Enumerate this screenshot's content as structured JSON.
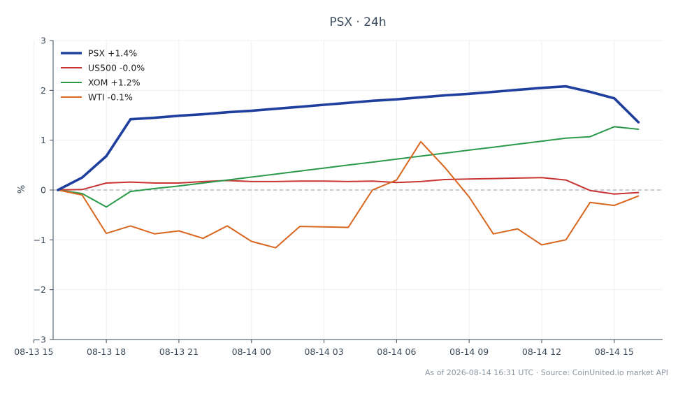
{
  "chart_data": {
    "type": "line",
    "title": "PSX · 24h",
    "xlabel": "",
    "ylabel": "%",
    "ylim": [
      -3,
      3
    ],
    "xlim": [
      "2026-08-13 15:48",
      "2026-08-14 17:00"
    ],
    "y_ticks": [
      3,
      2,
      1,
      0,
      -1,
      -2,
      -3
    ],
    "y_tick_labels": [
      "3",
      "2",
      "1",
      "0",
      "−1",
      "−2",
      "−3"
    ],
    "x_ticks": [
      "2026-08-13 15:00",
      "2026-08-13 18:00",
      "2026-08-13 21:00",
      "2026-08-14 00:00",
      "2026-08-14 03:00",
      "2026-08-14 06:00",
      "2026-08-14 09:00",
      "2026-08-14 12:00",
      "2026-08-14 15:00"
    ],
    "x_tick_labels": [
      "08-13 15",
      "08-13 18",
      "08-13 21",
      "08-14 00",
      "08-14 03",
      "08-14 06",
      "08-14 09",
      "08-14 12",
      "08-14 15"
    ],
    "grid": true,
    "legend_position": "top-left",
    "zero_line": true,
    "x": [
      "2026-08-13 16:00",
      "2026-08-13 17:00",
      "2026-08-13 18:00",
      "2026-08-13 19:00",
      "2026-08-13 20:00",
      "2026-08-13 21:00",
      "2026-08-13 22:00",
      "2026-08-13 23:00",
      "2026-08-14 00:00",
      "2026-08-14 01:00",
      "2026-08-14 02:00",
      "2026-08-14 03:00",
      "2026-08-14 04:00",
      "2026-08-14 05:00",
      "2026-08-14 06:00",
      "2026-08-14 07:00",
      "2026-08-14 08:00",
      "2026-08-14 09:00",
      "2026-08-14 10:00",
      "2026-08-14 11:00",
      "2026-08-14 12:00",
      "2026-08-14 13:00",
      "2026-08-14 14:00",
      "2026-08-14 15:00",
      "2026-08-14 16:00"
    ],
    "series": [
      {
        "name": "PSX +1.4%",
        "color": "#1f3f9e",
        "emphasis": true,
        "values": [
          0.0,
          0.25,
          0.68,
          1.42,
          1.45,
          1.49,
          1.52,
          1.56,
          1.59,
          1.63,
          1.67,
          1.71,
          1.75,
          1.79,
          1.82,
          1.86,
          1.9,
          1.93,
          1.97,
          2.01,
          2.05,
          2.08,
          1.97,
          1.84,
          1.36
        ]
      },
      {
        "name": "US500 -0.0%",
        "color": "#c83434",
        "emphasis": false,
        "values": [
          0.0,
          0.01,
          0.14,
          0.16,
          0.14,
          0.14,
          0.17,
          0.19,
          0.17,
          0.17,
          0.18,
          0.18,
          0.17,
          0.18,
          0.15,
          0.17,
          0.21,
          0.22,
          0.23,
          0.24,
          0.25,
          0.2,
          -0.01,
          -0.08,
          -0.05
        ]
      },
      {
        "name": "XOM +1.2%",
        "color": "#2a9a4a",
        "emphasis": false,
        "values": [
          0.0,
          -0.07,
          -0.34,
          -0.03,
          0.03,
          0.08,
          0.14,
          0.2,
          0.26,
          0.32,
          0.38,
          0.44,
          0.5,
          0.56,
          0.62,
          0.68,
          0.74,
          0.8,
          0.86,
          0.92,
          0.98,
          1.04,
          1.07,
          1.27,
          1.22
        ]
      },
      {
        "name": "WTI -0.1%",
        "color": "#d9661f",
        "emphasis": false,
        "values": [
          0.0,
          -0.1,
          -0.87,
          -0.72,
          -0.88,
          -0.82,
          -0.97,
          -0.72,
          -1.03,
          -1.16,
          -0.73,
          -0.74,
          -0.75,
          0.0,
          0.2,
          0.97,
          0.45,
          -0.14,
          -0.88,
          -0.78,
          -1.1,
          -1.0,
          -0.25,
          -0.31,
          -0.12
        ]
      }
    ]
  },
  "footer": {
    "text": "As of 2026-08-14 16:31 UTC · Source: CoinUnited.io market API"
  }
}
